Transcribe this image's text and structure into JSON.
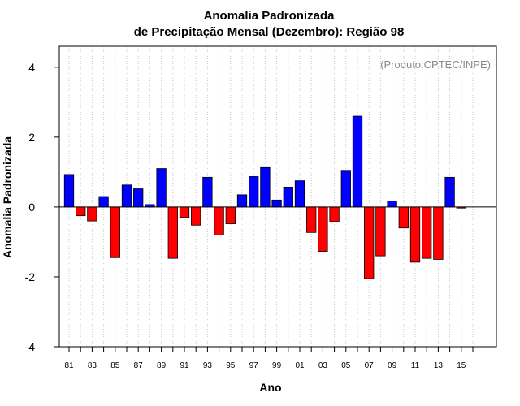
{
  "chart_data": {
    "type": "bar",
    "title": "Anomalia Padronizada",
    "subtitle": "de Precipitação Mensal (Dezembro): Região 98",
    "xlabel": "Ano",
    "ylabel": "Anomalia Padronizada",
    "annotation": "(Produto:CPTEC/INPE)",
    "ylim": [
      -4,
      4.6
    ],
    "yticks": [
      -4,
      -2,
      0,
      2,
      4
    ],
    "yticklabels": [
      "-4",
      "-2",
      "0",
      "2",
      "4"
    ],
    "grid": "vertical dotted",
    "colors": {
      "positive": "#0000ff",
      "negative": "#ff0000",
      "grid": "#c8c8c8",
      "axis": "#000000"
    },
    "categories": [
      1981,
      1982,
      1983,
      1984,
      1985,
      1986,
      1987,
      1988,
      1989,
      1990,
      1991,
      1992,
      1993,
      1994,
      1995,
      1996,
      1997,
      1998,
      1999,
      2000,
      2001,
      2002,
      2003,
      2004,
      2005,
      2006,
      2007,
      2008,
      2009,
      2010,
      2011,
      2012,
      2013,
      2014,
      2015
    ],
    "xticklabels": [
      "81",
      "83",
      "85",
      "87",
      "89",
      "91",
      "93",
      "95",
      "97",
      "99",
      "01",
      "03",
      "05",
      "07",
      "09",
      "11",
      "13",
      "15"
    ],
    "values": [
      0.93,
      -0.25,
      -0.4,
      0.3,
      -1.45,
      0.63,
      0.52,
      0.07,
      1.1,
      -1.47,
      -0.3,
      -0.52,
      0.85,
      -0.8,
      -0.48,
      0.35,
      0.87,
      1.13,
      0.2,
      0.57,
      0.75,
      -0.73,
      -1.27,
      -0.42,
      1.05,
      2.6,
      -2.05,
      -1.4,
      0.17,
      -0.6,
      -1.58,
      -1.47,
      -1.5,
      0.85,
      -0.03
    ]
  }
}
